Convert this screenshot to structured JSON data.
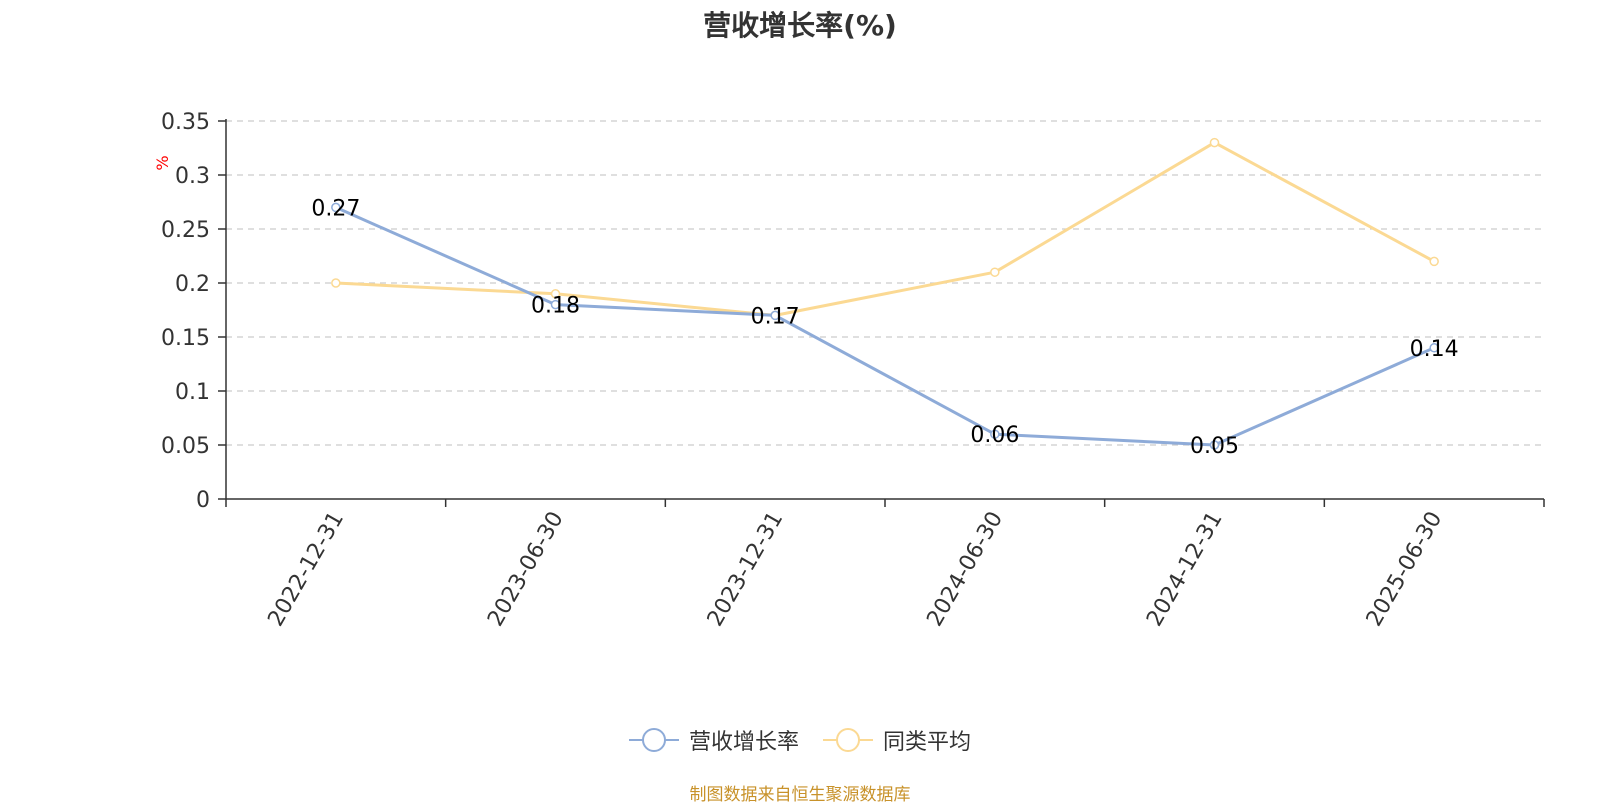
{
  "chart_data": {
    "type": "line",
    "title": "营收增长率(%)",
    "ylabel": "%",
    "xlabel": "",
    "categories": [
      "2022-12-31",
      "2023-06-30",
      "2023-12-31",
      "2024-06-30",
      "2024-12-31",
      "2025-06-30"
    ],
    "series": [
      {
        "name": "营收增长率",
        "color": "#8eabd8",
        "values": [
          0.27,
          0.18,
          0.17,
          0.06,
          0.05,
          0.14
        ],
        "data_labels": [
          "0.27",
          "0.18",
          "0.17",
          "0.06",
          "0.05",
          "0.14"
        ]
      },
      {
        "name": "同类平均",
        "color": "#fbd993",
        "values": [
          0.2,
          0.19,
          0.17,
          0.21,
          0.33,
          0.22
        ]
      }
    ],
    "ylim": [
      0,
      0.35
    ],
    "yticks": [
      "0",
      "0.05",
      "0.1",
      "0.15",
      "0.2",
      "0.25",
      "0.3",
      "0.35"
    ],
    "grid": true,
    "legend_position": "bottom-center"
  },
  "legend": {
    "item1": "营收增长率",
    "item2": "同类平均"
  },
  "source_note": "制图数据来自恒生聚源数据库",
  "colors": {
    "title": "#333333",
    "axis": "#333333",
    "grid": "#cccccc",
    "ylabel": "#ff0000",
    "source_note": "#c8922a"
  }
}
